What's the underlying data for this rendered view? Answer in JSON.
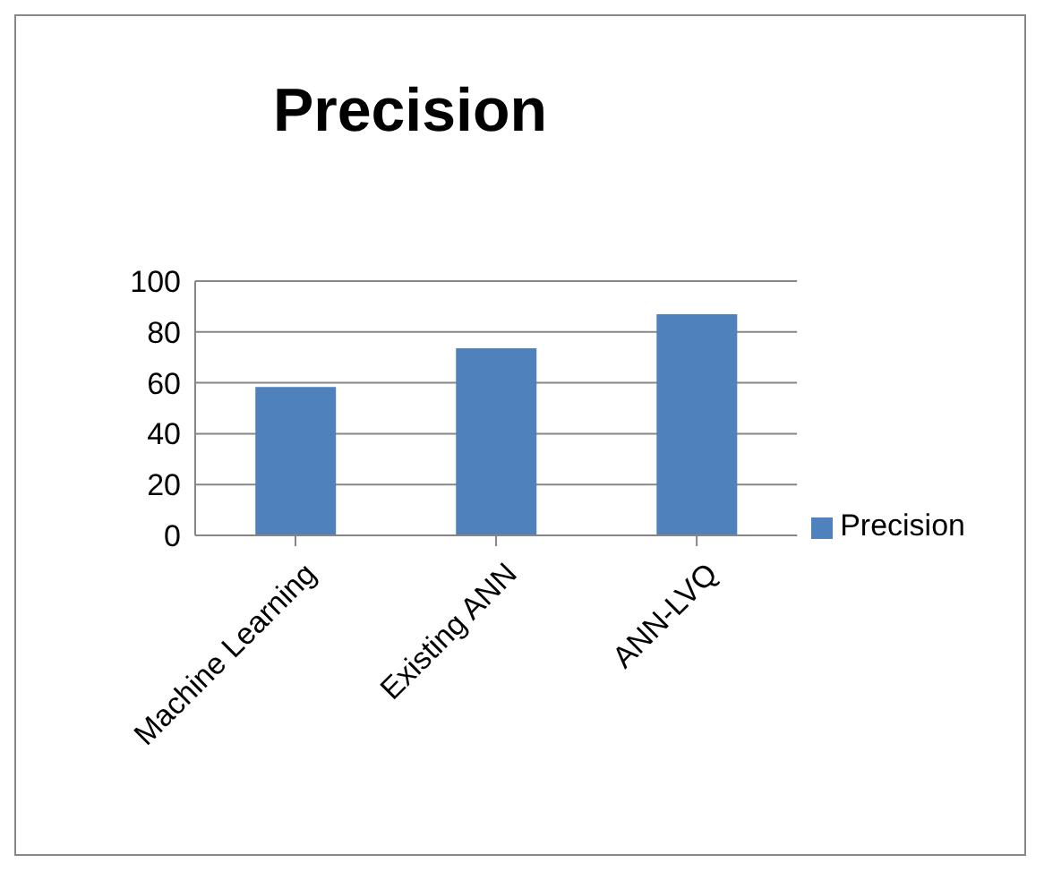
{
  "chart_data": {
    "type": "bar",
    "title": "Precision",
    "categories": [
      "Machine Learning",
      "Existing ANN",
      "ANN-LVQ"
    ],
    "series": [
      {
        "name": "Precision",
        "color": "#4f81bd",
        "values": [
          58.4,
          73.6,
          87
        ]
      }
    ],
    "ylim": [
      0,
      100
    ],
    "yticks": [
      0,
      20,
      40,
      60,
      80,
      100
    ],
    "grid": "y",
    "legend": "right"
  }
}
